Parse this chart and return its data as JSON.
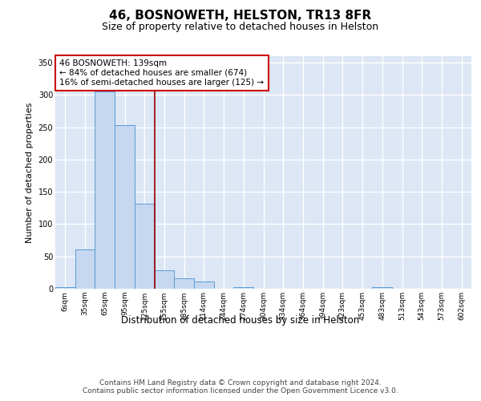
{
  "title": "46, BOSNOWETH, HELSTON, TR13 8FR",
  "subtitle": "Size of property relative to detached houses in Helston",
  "xlabel": "Distribution of detached houses by size in Helston",
  "ylabel": "Number of detached properties",
  "bin_labels": [
    "6sqm",
    "35sqm",
    "65sqm",
    "95sqm",
    "125sqm",
    "155sqm",
    "185sqm",
    "214sqm",
    "244sqm",
    "274sqm",
    "304sqm",
    "334sqm",
    "364sqm",
    "394sqm",
    "423sqm",
    "453sqm",
    "483sqm",
    "513sqm",
    "543sqm",
    "573sqm",
    "602sqm"
  ],
  "bar_values": [
    2,
    61,
    305,
    253,
    132,
    29,
    16,
    11,
    0,
    3,
    0,
    0,
    0,
    0,
    0,
    0,
    2,
    0,
    0,
    0,
    0
  ],
  "bar_color": "#c5d8f0",
  "bar_edge_color": "#5b9bd5",
  "background_color": "#dce6f5",
  "grid_color": "#ffffff",
  "annotation_text": "46 BOSNOWETH: 139sqm\n← 84% of detached houses are smaller (674)\n16% of semi-detached houses are larger (125) →",
  "annotation_box_color": "#ffffff",
  "annotation_box_edge_color": "#cc0000",
  "vline_x": 4.5,
  "vline_color": "#990000",
  "ylim": [
    0,
    360
  ],
  "yticks": [
    0,
    50,
    100,
    150,
    200,
    250,
    300,
    350
  ],
  "footer_text": "Contains HM Land Registry data © Crown copyright and database right 2024.\nContains public sector information licensed under the Open Government Licence v3.0.",
  "title_fontsize": 11,
  "subtitle_fontsize": 9,
  "annotation_fontsize": 7.5,
  "footer_fontsize": 6.5,
  "ylabel_fontsize": 8,
  "xlabel_fontsize": 8.5,
  "tick_fontsize": 6.5
}
